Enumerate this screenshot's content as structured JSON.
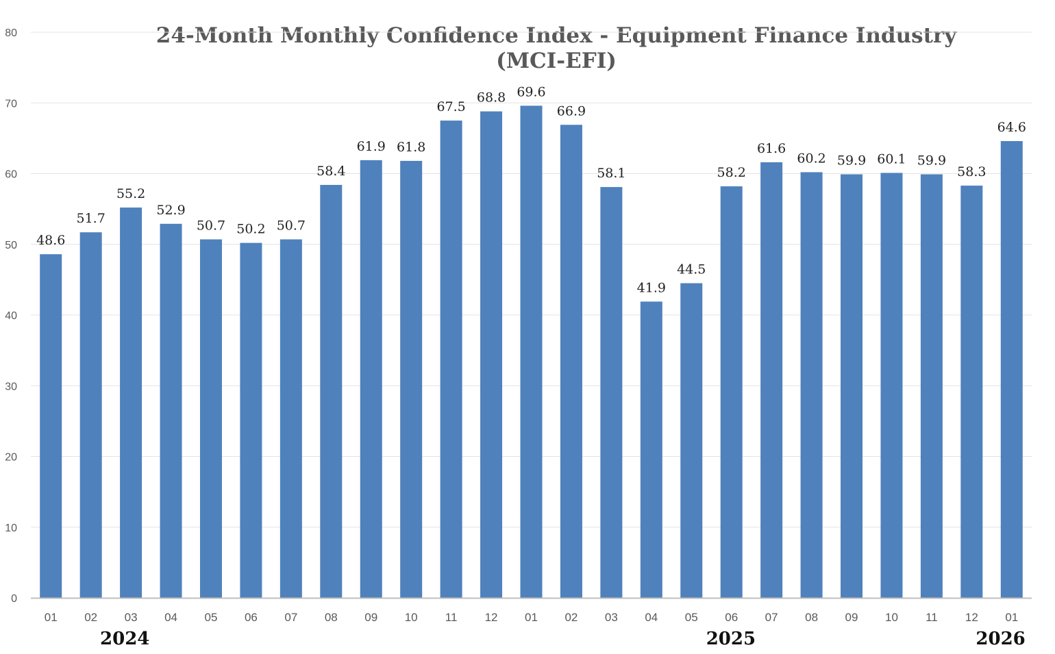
{
  "chart_data": {
    "type": "bar",
    "title_line_1": "24-Month Monthly Confidence Index - Equipment Finance Industry",
    "title_line_2": "(MCI-EFI)",
    "xlabel": "",
    "ylabel": "",
    "ylim": [
      0,
      80
    ],
    "yticks": [
      "0",
      "10",
      "20",
      "30",
      "40",
      "50",
      "60",
      "70",
      "80"
    ],
    "grid": true,
    "bar_color": "#4f81bd",
    "categories": [
      "01",
      "02",
      "03",
      "04",
      "05",
      "06",
      "07",
      "08",
      "09",
      "10",
      "11",
      "12",
      "01",
      "02",
      "03",
      "04",
      "05",
      "06",
      "07",
      "08",
      "09",
      "10",
      "11",
      "12",
      "01"
    ],
    "values": [
      48.6,
      51.7,
      55.2,
      52.9,
      50.7,
      50.2,
      50.7,
      58.4,
      61.9,
      61.8,
      67.5,
      68.8,
      69.6,
      66.9,
      58.1,
      41.9,
      44.5,
      58.2,
      61.6,
      60.2,
      59.9,
      60.1,
      59.9,
      58.3,
      64.6
    ],
    "data_labels": [
      "48.6",
      "51.7",
      "55.2",
      "52.9",
      "50.7",
      "50.2",
      "50.7",
      "58.4",
      "61.9",
      "61.8",
      "67.5",
      "68.8",
      "69.6",
      "66.9",
      "58.1",
      "41.9",
      "44.5",
      "58.2",
      "61.6",
      "60.2",
      "59.9",
      "60.1",
      "59.9",
      "58.3",
      "64.6"
    ],
    "year_groups": [
      {
        "label": "2024",
        "start_index": 0,
        "end_index": 11
      },
      {
        "label": "2025",
        "start_index": 12,
        "end_index": 23
      },
      {
        "label": "2026",
        "start_index": 24,
        "end_index": 24
      }
    ]
  }
}
